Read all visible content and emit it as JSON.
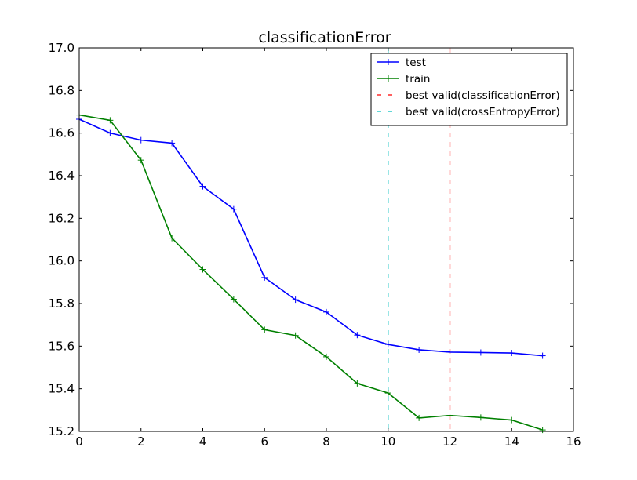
{
  "chart_data": {
    "type": "line",
    "title": "classificationError",
    "xlabel": "",
    "ylabel": "",
    "xlim": [
      0,
      16
    ],
    "ylim": [
      15.2,
      17.0
    ],
    "xticks": [
      "0",
      "2",
      "4",
      "6",
      "8",
      "10",
      "12",
      "14",
      "16"
    ],
    "yticks": [
      "15.2",
      "15.4",
      "15.6",
      "15.8",
      "16.0",
      "16.2",
      "16.4",
      "16.6",
      "16.8",
      "17.0"
    ],
    "grid": false,
    "legend_position": "top-right",
    "series": [
      {
        "name": "test",
        "color": "#0000ff",
        "marker": "+",
        "x": [
          0,
          1,
          2,
          3,
          4,
          5,
          6,
          7,
          8,
          9,
          10,
          11,
          12,
          13,
          14,
          15
        ],
        "y": [
          16.665,
          16.6,
          16.567,
          16.553,
          16.35,
          16.243,
          15.922,
          15.818,
          15.76,
          15.652,
          15.608,
          15.583,
          15.572,
          15.57,
          15.568,
          15.555
        ]
      },
      {
        "name": "train",
        "color": "#008000",
        "marker": "+",
        "x": [
          0,
          1,
          2,
          3,
          4,
          5,
          6,
          7,
          8,
          9,
          10,
          11,
          12,
          13,
          14,
          15
        ],
        "y": [
          16.685,
          16.66,
          16.473,
          16.107,
          15.96,
          15.82,
          15.677,
          15.65,
          15.55,
          15.425,
          15.38,
          15.263,
          15.275,
          15.265,
          15.253,
          15.207
        ]
      }
    ],
    "vlines": [
      {
        "name": "best valid(classificationError)",
        "x": 12,
        "color": "#ff0000",
        "style": "dashed"
      },
      {
        "name": "best valid(crossEntropyError)",
        "x": 10,
        "color": "#00bfbf",
        "style": "dashed"
      }
    ]
  }
}
